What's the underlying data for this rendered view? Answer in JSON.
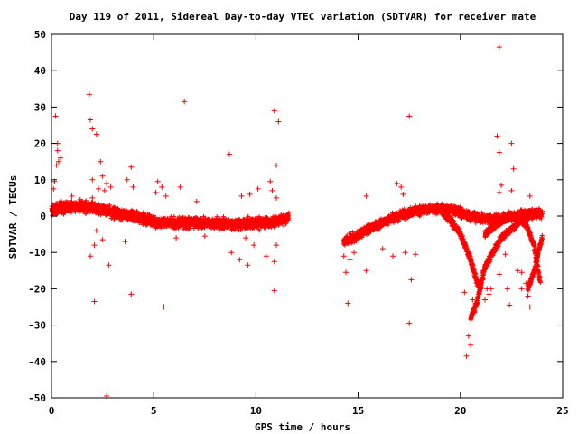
{
  "chart_data": {
    "type": "scatter",
    "title": "Day 119 of 2011, Sidereal Day-to-day VTEC variation (SDTVAR) for receiver mate",
    "xlabel": "GPS time / hours",
    "ylabel": "SDTVAR / TECUs",
    "xlim": [
      0,
      25
    ],
    "ylim": [
      -50,
      50
    ],
    "x_ticks": [
      0,
      5,
      10,
      15,
      20,
      25
    ],
    "y_ticks": [
      -50,
      -40,
      -30,
      -20,
      -10,
      0,
      10,
      20,
      30,
      40,
      50
    ],
    "x_tick_labels": [
      "0",
      "5",
      "10",
      "15",
      "20",
      "25"
    ],
    "y_tick_labels": [
      "-50",
      "-40",
      "-30",
      "-20",
      "-10",
      "0",
      "10",
      "20",
      "30",
      "40",
      "50"
    ],
    "grid": false,
    "marker": "plus",
    "marker_color": "#ff0000",
    "axis_color": "#000000",
    "dense_tracks": [
      {
        "x": [
          0.0,
          0.5,
          1.0,
          2.0,
          3.0,
          4.0,
          5.0,
          6.0,
          7.0,
          8.0,
          9.0,
          10.0,
          11.0,
          11.6
        ],
        "y": [
          1.5,
          2.5,
          2.8,
          2.2,
          1.0,
          0.0,
          -1.5,
          -2.0,
          -1.8,
          -2.0,
          -2.2,
          -2.0,
          -1.5,
          -0.5
        ],
        "spread": 2.2
      },
      {
        "x": [
          14.3,
          14.8,
          15.5,
          16.5,
          17.5,
          18.5,
          19.5,
          20.5,
          21.5,
          22.5,
          23.5,
          24.0
        ],
        "y": [
          -7.0,
          -6.0,
          -3.5,
          -1.0,
          1.0,
          2.0,
          2.0,
          0.0,
          -1.0,
          0.0,
          1.0,
          0.5
        ],
        "spread": 1.8
      },
      {
        "x": [
          19.0,
          19.5,
          20.0,
          20.5,
          20.8,
          21.0
        ],
        "y": [
          2.0,
          -1.0,
          -5.0,
          -12.0,
          -18.0,
          -20.0
        ],
        "spread": 1.5
      },
      {
        "x": [
          20.5,
          20.8,
          21.2,
          22.0,
          23.0,
          23.9
        ],
        "y": [
          -28.0,
          -24.0,
          -14.0,
          -6.0,
          -1.0,
          1.0
        ],
        "spread": 1.3
      },
      {
        "x": [
          21.2,
          21.8,
          22.5,
          23.2,
          23.6,
          23.9
        ],
        "y": [
          -5.0,
          -2.0,
          0.0,
          -2.0,
          -8.0,
          -18.0
        ],
        "spread": 1.3
      },
      {
        "x": [
          23.3,
          23.6,
          23.9,
          24.0
        ],
        "y": [
          -20.0,
          -15.0,
          -8.0,
          -6.0
        ],
        "spread": 1.2
      }
    ],
    "scatter_points": [
      {
        "x": 0.15,
        "y": 9.5
      },
      {
        "x": 0.1,
        "y": 7.5
      },
      {
        "x": 0.2,
        "y": 27.5
      },
      {
        "x": 0.3,
        "y": 20.0
      },
      {
        "x": 0.3,
        "y": 18.0
      },
      {
        "x": 0.35,
        "y": 15.0
      },
      {
        "x": 0.25,
        "y": 14.0
      },
      {
        "x": 0.45,
        "y": 16.0
      },
      {
        "x": 1.0,
        "y": 5.5
      },
      {
        "x": 1.4,
        "y": 4.5
      },
      {
        "x": 1.85,
        "y": 33.5
      },
      {
        "x": 1.9,
        "y": 26.5
      },
      {
        "x": 2.0,
        "y": 24.0
      },
      {
        "x": 2.2,
        "y": 22.5
      },
      {
        "x": 2.4,
        "y": 15.0
      },
      {
        "x": 2.5,
        "y": 11.0
      },
      {
        "x": 2.0,
        "y": 10.0
      },
      {
        "x": 2.7,
        "y": 9.0
      },
      {
        "x": 2.9,
        "y": 8.0
      },
      {
        "x": 2.3,
        "y": 7.5
      },
      {
        "x": 2.6,
        "y": 7.0
      },
      {
        "x": 2.0,
        "y": 5.0
      },
      {
        "x": 2.1,
        "y": -8.0
      },
      {
        "x": 1.9,
        "y": -11.0
      },
      {
        "x": 2.8,
        "y": -13.5
      },
      {
        "x": 2.1,
        "y": -23.5
      },
      {
        "x": 2.7,
        "y": -49.5
      },
      {
        "x": 3.6,
        "y": -7.0
      },
      {
        "x": 3.9,
        "y": -21.5
      },
      {
        "x": 3.9,
        "y": 13.5
      },
      {
        "x": 3.7,
        "y": 10.0
      },
      {
        "x": 4.0,
        "y": 8.0
      },
      {
        "x": 2.2,
        "y": -4.0
      },
      {
        "x": 2.5,
        "y": -6.5
      },
      {
        "x": 5.2,
        "y": 9.5
      },
      {
        "x": 5.4,
        "y": 8.0
      },
      {
        "x": 5.1,
        "y": 6.5
      },
      {
        "x": 5.6,
        "y": 5.5
      },
      {
        "x": 5.5,
        "y": -25.0
      },
      {
        "x": 6.1,
        "y": -6.0
      },
      {
        "x": 6.5,
        "y": 31.5
      },
      {
        "x": 6.3,
        "y": 8.0
      },
      {
        "x": 7.1,
        "y": 4.0
      },
      {
        "x": 7.5,
        "y": -5.5
      },
      {
        "x": 8.7,
        "y": 17.0
      },
      {
        "x": 8.8,
        "y": -10.0
      },
      {
        "x": 9.2,
        "y": -12.0
      },
      {
        "x": 9.6,
        "y": -13.5
      },
      {
        "x": 9.9,
        "y": -8.0
      },
      {
        "x": 9.5,
        "y": -6.0
      },
      {
        "x": 9.3,
        "y": 5.5
      },
      {
        "x": 10.1,
        "y": 7.5
      },
      {
        "x": 9.7,
        "y": 6.0
      },
      {
        "x": 10.9,
        "y": 29.0
      },
      {
        "x": 11.1,
        "y": 26.0
      },
      {
        "x": 11.0,
        "y": 14.0
      },
      {
        "x": 10.7,
        "y": 9.5
      },
      {
        "x": 10.8,
        "y": 7.0
      },
      {
        "x": 11.0,
        "y": 5.0
      },
      {
        "x": 10.5,
        "y": -11.0
      },
      {
        "x": 10.9,
        "y": -12.5
      },
      {
        "x": 10.9,
        "y": -20.5
      },
      {
        "x": 11.0,
        "y": -8.0
      },
      {
        "x": 14.5,
        "y": -24.0
      },
      {
        "x": 14.4,
        "y": -15.5
      },
      {
        "x": 14.6,
        "y": -12.0
      },
      {
        "x": 14.3,
        "y": -11.0
      },
      {
        "x": 14.8,
        "y": -10.0
      },
      {
        "x": 15.4,
        "y": 5.5
      },
      {
        "x": 15.4,
        "y": -15.0
      },
      {
        "x": 16.2,
        "y": -9.0
      },
      {
        "x": 16.9,
        "y": 9.0
      },
      {
        "x": 17.1,
        "y": 8.0
      },
      {
        "x": 16.7,
        "y": -11.0
      },
      {
        "x": 17.5,
        "y": 27.5
      },
      {
        "x": 17.5,
        "y": -29.5
      },
      {
        "x": 17.3,
        "y": -10.0
      },
      {
        "x": 17.6,
        "y": -17.5
      },
      {
        "x": 17.2,
        "y": 6.0
      },
      {
        "x": 17.8,
        "y": -10.5
      },
      {
        "x": 20.4,
        "y": -33.0
      },
      {
        "x": 20.3,
        "y": -38.5
      },
      {
        "x": 20.5,
        "y": -35.5
      },
      {
        "x": 20.6,
        "y": -23.0
      },
      {
        "x": 20.2,
        "y": -21.0
      },
      {
        "x": 21.1,
        "y": -17.5
      },
      {
        "x": 21.3,
        "y": -20.0
      },
      {
        "x": 21.2,
        "y": -23.0
      },
      {
        "x": 21.1,
        "y": -15.0
      },
      {
        "x": 21.5,
        "y": -20.0
      },
      {
        "x": 21.4,
        "y": -21.5
      },
      {
        "x": 21.9,
        "y": 46.5
      },
      {
        "x": 21.8,
        "y": 22.0
      },
      {
        "x": 21.9,
        "y": 17.5
      },
      {
        "x": 21.9,
        "y": -16.0
      },
      {
        "x": 21.9,
        "y": 6.5
      },
      {
        "x": 22.3,
        "y": -20.0
      },
      {
        "x": 22.4,
        "y": -24.5
      },
      {
        "x": 22.5,
        "y": 20.0
      },
      {
        "x": 22.6,
        "y": 13.0
      },
      {
        "x": 22.5,
        "y": 7.0
      },
      {
        "x": 22.8,
        "y": -15.0
      },
      {
        "x": 23.0,
        "y": -20.0
      },
      {
        "x": 23.4,
        "y": -25.0
      },
      {
        "x": 23.3,
        "y": -22.0
      },
      {
        "x": 23.4,
        "y": 5.5
      },
      {
        "x": 23.0,
        "y": -15.5
      },
      {
        "x": 23.2,
        "y": -18.5
      },
      {
        "x": 22.0,
        "y": 8.5
      },
      {
        "x": 22.2,
        "y": -10.5
      }
    ]
  }
}
